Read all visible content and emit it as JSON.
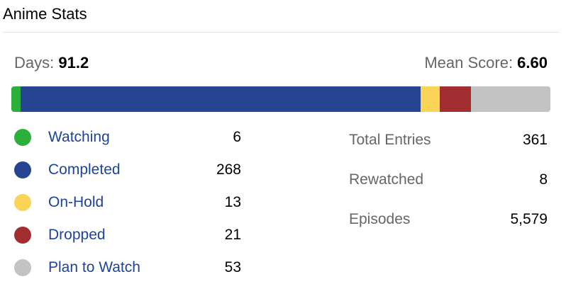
{
  "title": "Anime Stats",
  "summary": {
    "days_label": "Days: ",
    "days_value": "91.2",
    "mean_label": "Mean Score: ",
    "mean_value": "6.60"
  },
  "statuses": [
    {
      "label": "Watching",
      "count": "6",
      "value": 6,
      "color": "#2db039"
    },
    {
      "label": "Completed",
      "count": "268",
      "value": 268,
      "color": "#26448f"
    },
    {
      "label": "On-Hold",
      "count": "13",
      "value": 13,
      "color": "#f9d457"
    },
    {
      "label": "Dropped",
      "count": "21",
      "value": 21,
      "color": "#a12f31"
    },
    {
      "label": "Plan to Watch",
      "count": "53",
      "value": 53,
      "color": "#c3c3c3"
    }
  ],
  "totals": [
    {
      "label": "Total Entries",
      "value": "361"
    },
    {
      "label": "Rewatched",
      "value": "8"
    },
    {
      "label": "Episodes",
      "value": "5,579"
    }
  ],
  "colors": {
    "link": "#1d439b",
    "muted_text": "#666666"
  }
}
